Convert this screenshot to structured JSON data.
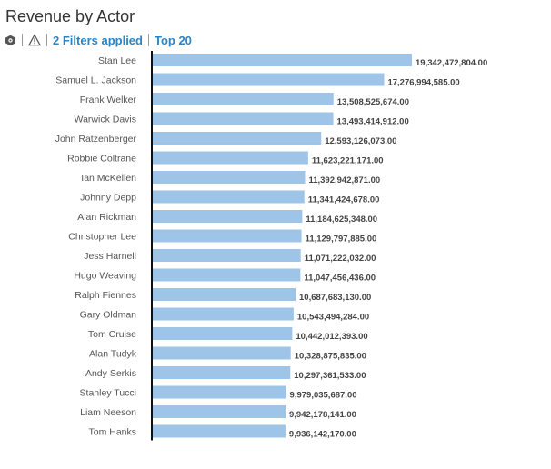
{
  "title": "Revenue by Actor",
  "toolbar": {
    "filters_label": "2 Filters applied",
    "top_label": "Top 20"
  },
  "icons": {
    "settings": "cube-settings-icon",
    "warning": "warning-triangle-icon"
  },
  "colors": {
    "bar": "#9ec4e7",
    "axis": "#111111",
    "link": "#2a84c6"
  },
  "chart_data": {
    "type": "bar",
    "orientation": "horizontal",
    "title": "Revenue by Actor",
    "categories": [
      "Stan Lee",
      "Samuel L. Jackson",
      "Frank Welker",
      "Warwick Davis",
      "John Ratzenberger",
      "Robbie Coltrane",
      "Ian McKellen",
      "Johnny Depp",
      "Alan Rickman",
      "Christopher Lee",
      "Jess Harnell",
      "Hugo Weaving",
      "Ralph Fiennes",
      "Gary Oldman",
      "Tom Cruise",
      "Alan Tudyk",
      "Andy Serkis",
      "Stanley Tucci",
      "Liam Neeson",
      "Tom Hanks"
    ],
    "values": [
      19342472804,
      17276994585,
      13508525674,
      13493414912,
      12593126073,
      11623221171,
      11392942871,
      11341424678,
      11184625348,
      11129797885,
      11071222032,
      11047456436,
      10687683130,
      10543494284,
      10442012393,
      10328875835,
      10297361533,
      9979035687,
      9942178141,
      9936142170
    ],
    "value_labels": [
      "19,342,472,804.00",
      "17,276,994,585.00",
      "13,508,525,674.00",
      "13,493,414,912.00",
      "12,593,126,073.00",
      "11,623,221,171.00",
      "11,392,942,871.00",
      "11,341,424,678.00",
      "11,184,625,348.00",
      "11,129,797,885.00",
      "11,071,222,032.00",
      "11,047,456,436.00",
      "10,687,683,130.00",
      "10,543,494,284.00",
      "10,442,012,393.00",
      "10,328,875,835.00",
      "10,297,361,533.00",
      "9,979,035,687.00",
      "9,942,178,141.00",
      "9,936,142,170.00"
    ],
    "xlim": [
      0,
      19342472804
    ],
    "grid": false,
    "legend": "none"
  }
}
